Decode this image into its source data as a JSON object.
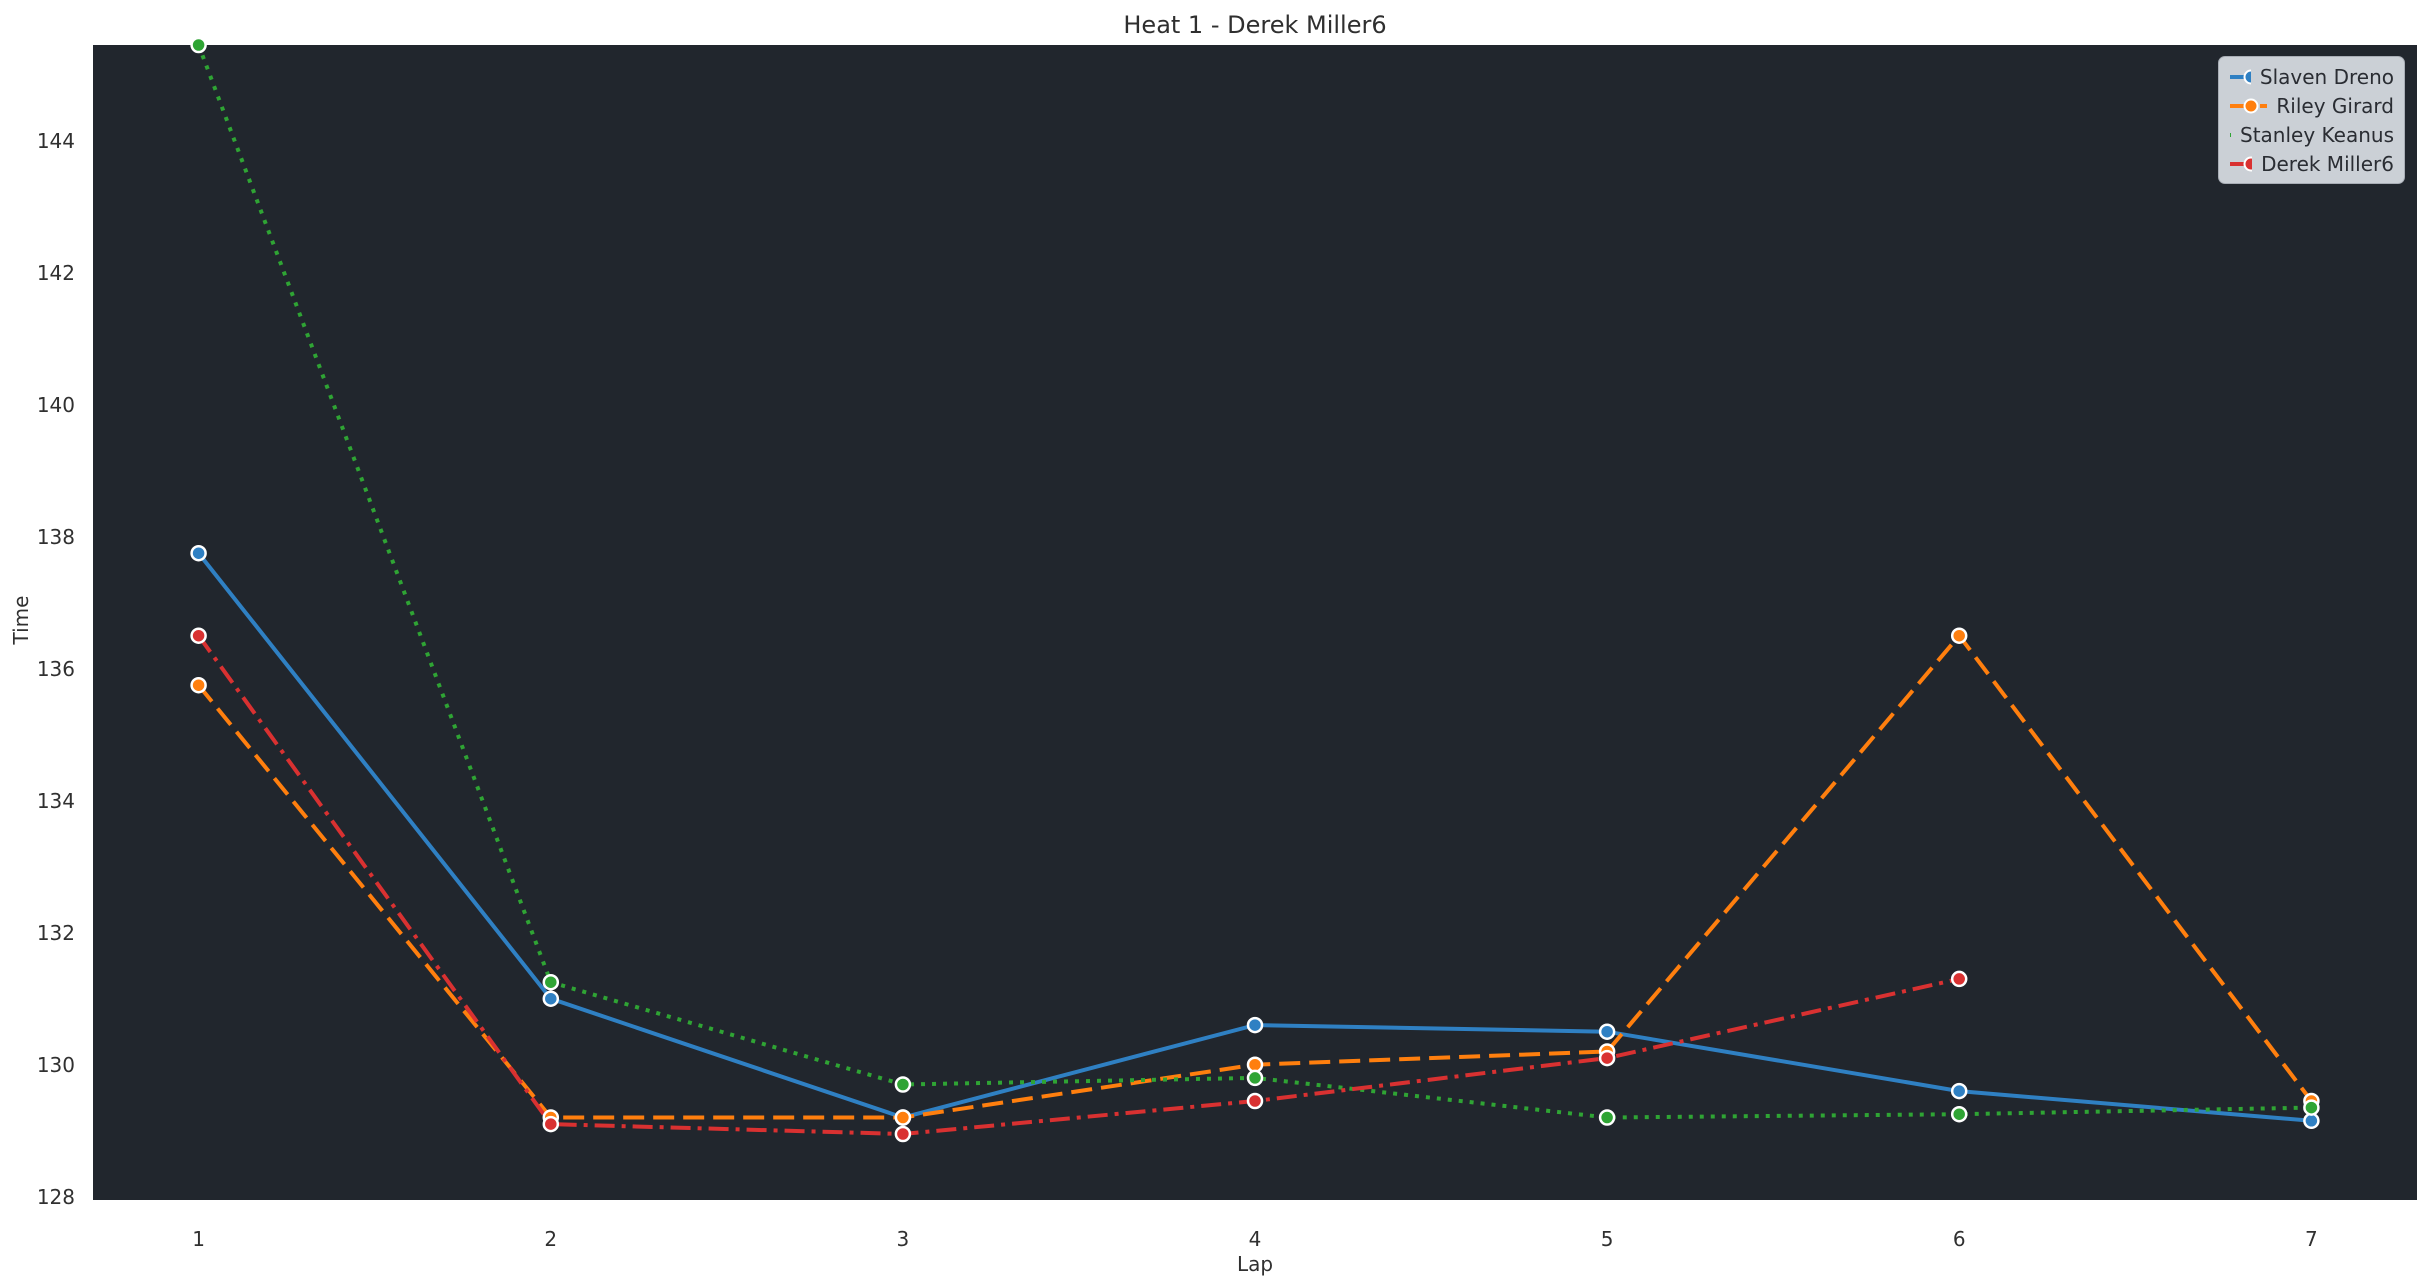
{
  "chart_data": {
    "type": "line",
    "title": "Heat 1 - Derek Miller6",
    "xlabel": "Lap",
    "ylabel": "Time",
    "x": [
      1,
      2,
      3,
      4,
      5,
      6,
      7
    ],
    "xticks": [
      1,
      2,
      3,
      4,
      5,
      6,
      7
    ],
    "yticks": [
      128,
      130,
      132,
      134,
      136,
      138,
      140,
      142,
      144
    ],
    "xlim": [
      0.7,
      7.3
    ],
    "ylim": [
      127.95,
      145.45
    ],
    "grid": false,
    "legend_position": "upper right",
    "series": [
      {
        "name": "Slaven Dreno",
        "color": "#2f80c3",
        "linestyle": "solid",
        "marker": "circle",
        "values": [
          137.75,
          131.0,
          129.2,
          130.6,
          130.5,
          129.6,
          129.15
        ]
      },
      {
        "name": "Riley Girard",
        "color": "#ff7f0e",
        "linestyle": "dashed",
        "marker": "circle",
        "values": [
          135.75,
          129.2,
          129.2,
          130.0,
          130.2,
          136.5,
          129.45
        ]
      },
      {
        "name": "Stanley Keanus",
        "color": "#2fa434",
        "linestyle": "dotted",
        "marker": "circle",
        "values": [
          145.45,
          131.25,
          129.7,
          129.8,
          129.2,
          129.25,
          129.35
        ]
      },
      {
        "name": "Derek Miller6",
        "color": "#d93131",
        "linestyle": "dashdot",
        "marker": "circle",
        "values": [
          136.5,
          129.1,
          128.95,
          129.45,
          130.1,
          131.3,
          null
        ]
      }
    ],
    "colors": {
      "figure_bg": "#ffffff",
      "plot_bg": "#21262d",
      "text": "#303030",
      "legend_bg": "#cbd0d6",
      "legend_border": "#a8adb5",
      "marker_edge": "#ffffff"
    }
  }
}
